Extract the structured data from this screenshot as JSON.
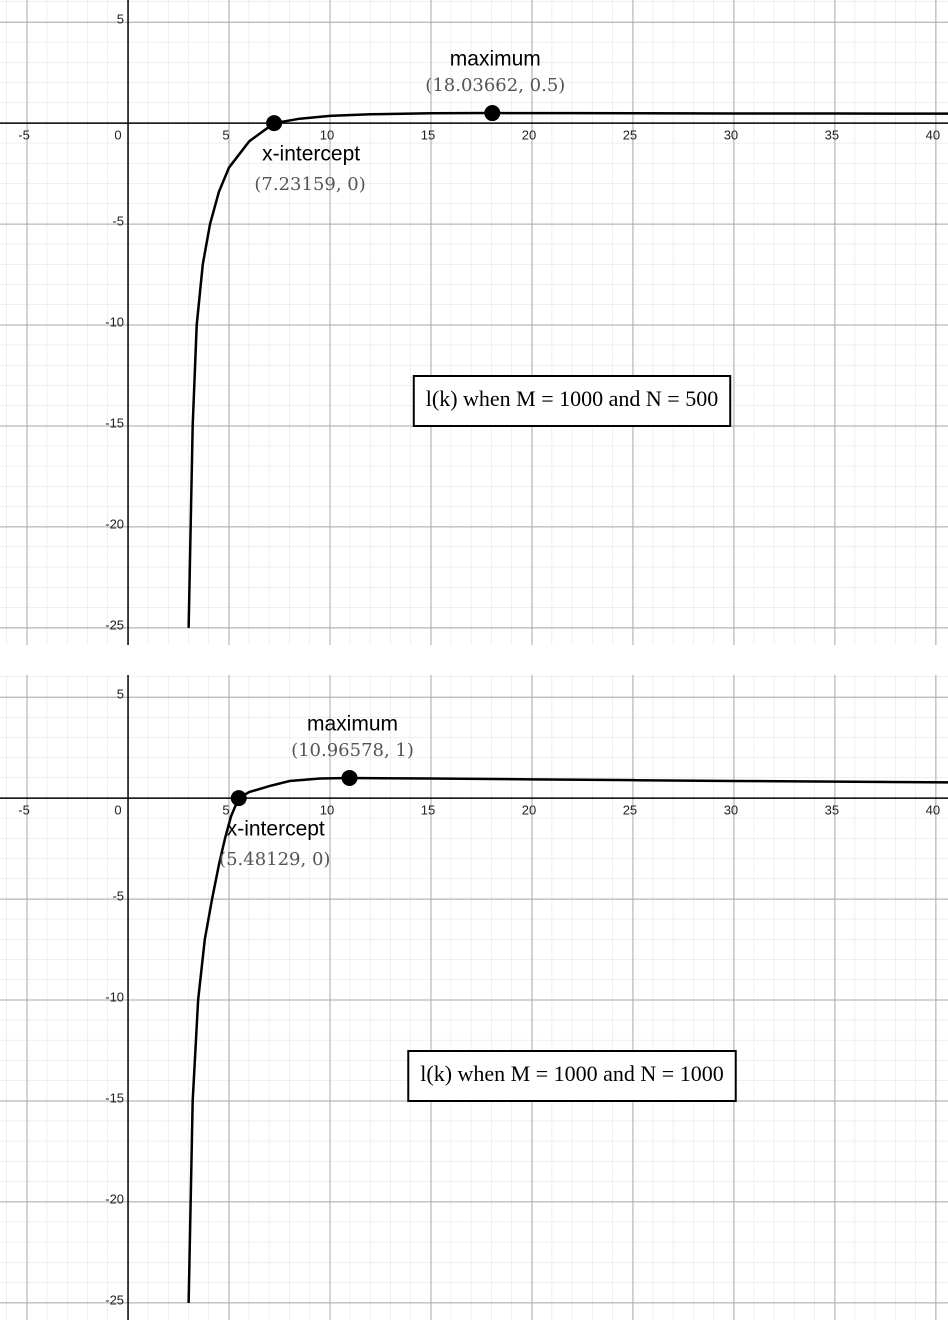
{
  "chart_data": [
    {
      "type": "line",
      "label": "l(k) when M = 1000 and N = 500",
      "x": [
        3.0,
        3.2,
        3.4,
        3.7,
        4.06,
        4.5,
        5.0,
        6.0,
        7.23159,
        8.5,
        10,
        12,
        15,
        18.03662,
        22,
        25,
        30,
        35,
        40.6
      ],
      "values": [
        -25,
        -15,
        -10,
        -7,
        -5,
        -3.4,
        -2.2,
        -0.9,
        0,
        0.22,
        0.36,
        0.44,
        0.49,
        0.5,
        0.495,
        0.49,
        0.48,
        0.475,
        0.47
      ],
      "color": "#000000",
      "xlim": [
        -6.34,
        40.6
      ],
      "ylim": [
        -25.85,
        6.1
      ],
      "xticks": [
        -5,
        0,
        5,
        10,
        15,
        20,
        25,
        30,
        35,
        40
      ],
      "yticks": [
        -25,
        -20,
        -15,
        -10,
        -5,
        5
      ],
      "grid": true,
      "minor_grid": true,
      "points": [
        {
          "label": "x-intercept",
          "coords": "(7.23159, 0)",
          "x": 7.23159,
          "y": 0
        },
        {
          "label": "maximum",
          "coords": "(18.03662, 0.5)",
          "x": 18.03662,
          "y": 0.5
        }
      ]
    },
    {
      "type": "line",
      "label": "l(k) when M = 1000 and N = 1000",
      "x": [
        3.0,
        3.2,
        3.47,
        3.8,
        4.16,
        4.5,
        4.8,
        5.1,
        5.48129,
        6.0,
        7.0,
        8.0,
        9.5,
        10.96578,
        15,
        20,
        25,
        30,
        35,
        40.6
      ],
      "values": [
        -25,
        -15,
        -10,
        -7,
        -5,
        -3.3,
        -2,
        -0.9,
        0,
        0.3,
        0.6,
        0.85,
        0.97,
        1,
        0.97,
        0.93,
        0.89,
        0.85,
        0.82,
        0.78
      ],
      "color": "#000000",
      "xlim": [
        -6.34,
        40.6
      ],
      "ylim": [
        -25.85,
        6.1
      ],
      "xticks": [
        -5,
        0,
        5,
        10,
        15,
        20,
        25,
        30,
        35,
        40
      ],
      "yticks": [
        -25,
        -20,
        -15,
        -10,
        -5,
        5
      ],
      "grid": true,
      "minor_grid": true,
      "points": [
        {
          "label": "x-intercept",
          "coords": "(5.48129, 0)",
          "x": 5.48129,
          "y": 0
        },
        {
          "label": "maximum",
          "coords": "(10.96578, 1)",
          "x": 10.96578,
          "y": 1
        }
      ]
    }
  ]
}
